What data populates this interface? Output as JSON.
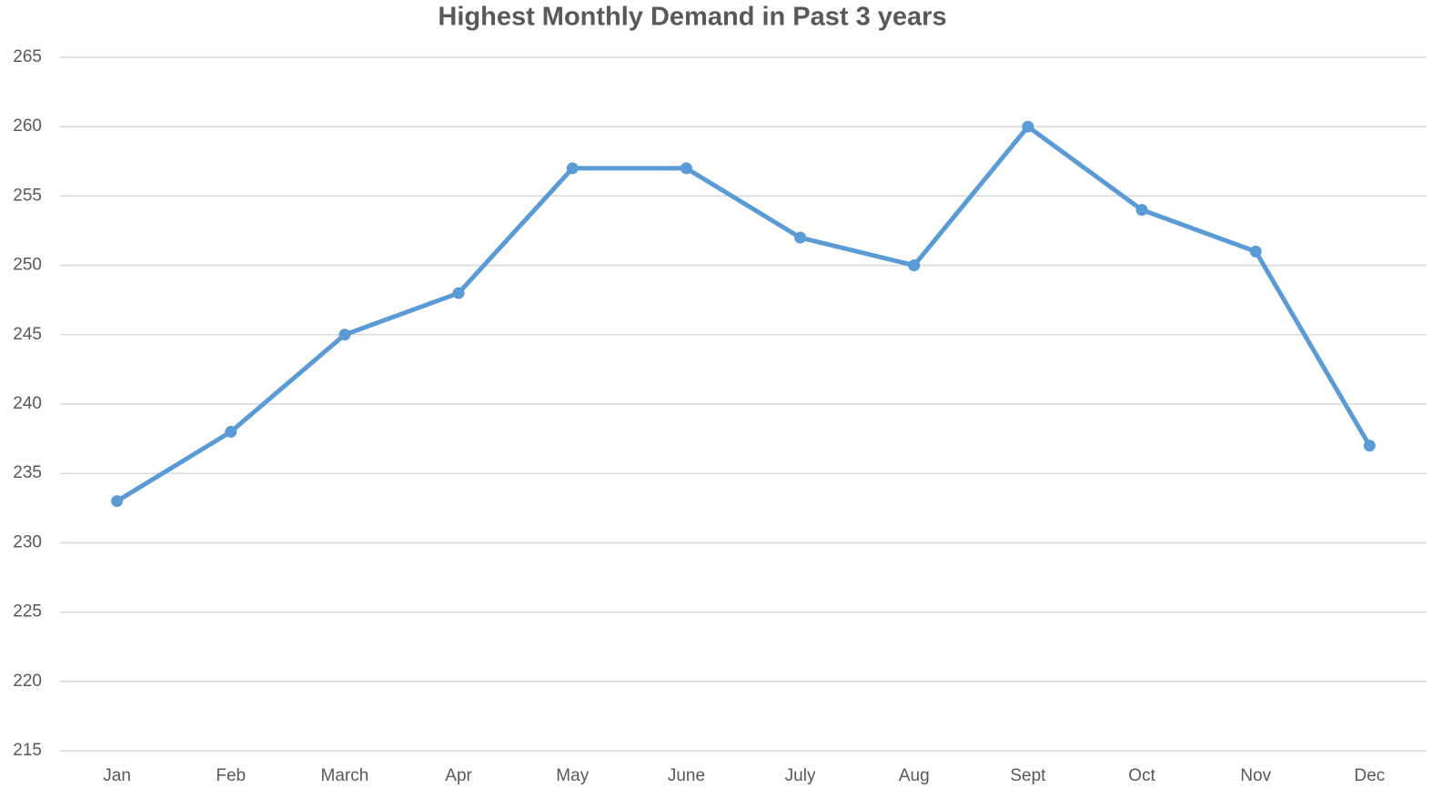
{
  "chart_data": {
    "type": "line",
    "title": "Highest Monthly Demand in Past 3 years",
    "categories": [
      "Jan",
      "Feb",
      "March",
      "Apr",
      "May",
      "June",
      "July",
      "Aug",
      "Sept",
      "Oct",
      "Nov",
      "Dec"
    ],
    "series": [
      {
        "color": "#5b9bd5",
        "values": [
          233,
          238,
          245,
          248,
          257,
          257,
          252,
          250,
          260,
          254,
          251,
          237
        ]
      }
    ],
    "ylim": [
      215,
      265
    ],
    "yticks": [
      215,
      220,
      225,
      230,
      235,
      240,
      245,
      250,
      255,
      260,
      265
    ],
    "grid": true
  }
}
